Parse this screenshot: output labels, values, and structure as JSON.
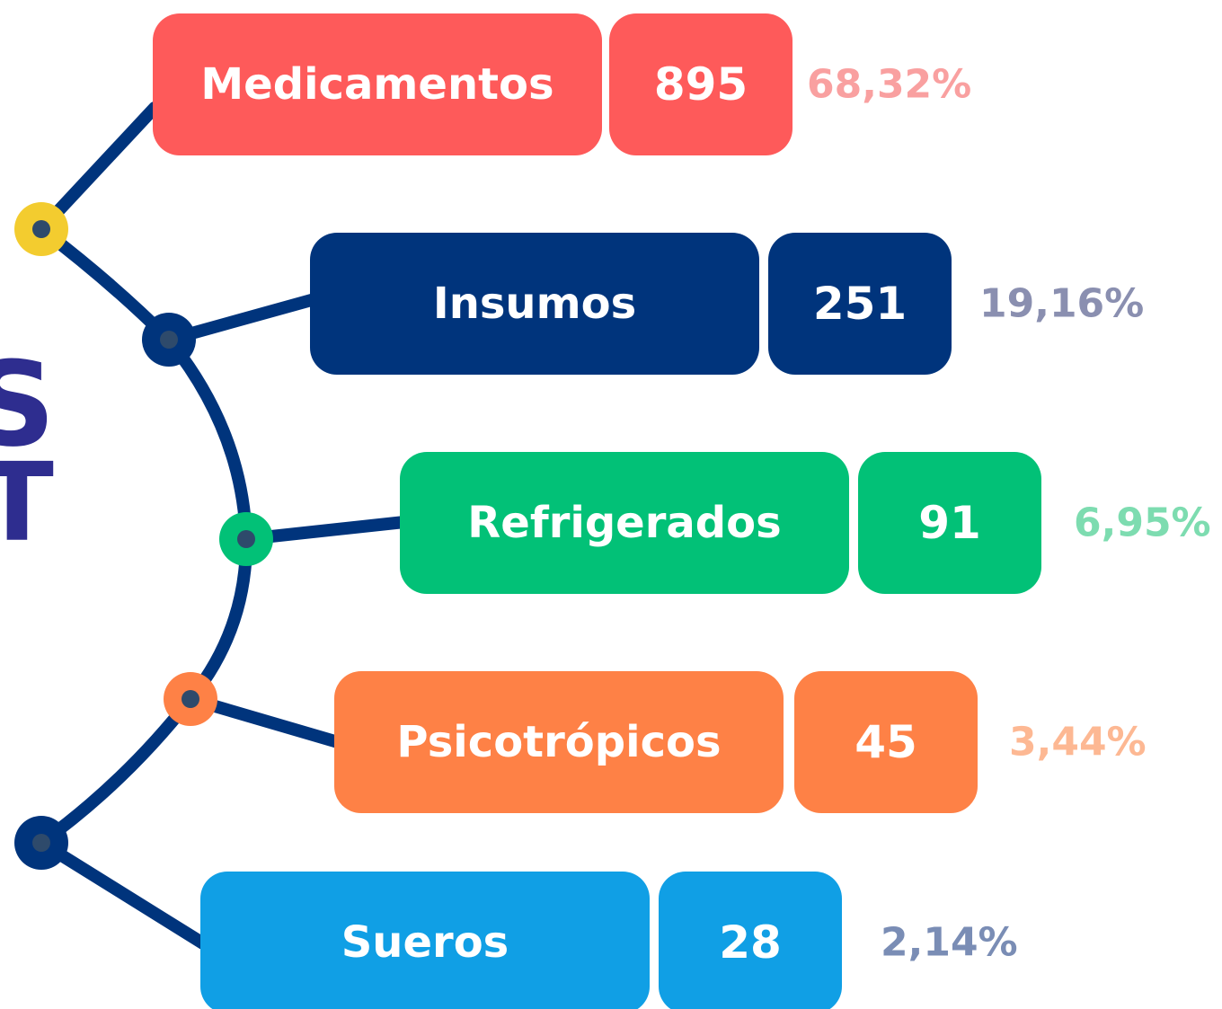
{
  "side_letters": [
    "S",
    "T"
  ],
  "items": [
    {
      "label": "Medicamentos",
      "count": 895,
      "percent": "68,32%"
    },
    {
      "label": "Insumos",
      "count": 251,
      "percent": "19,16%"
    },
    {
      "label": "Refrigerados",
      "count": 91,
      "percent": "6,95%"
    },
    {
      "label": "Psicotrópicos",
      "count": 45,
      "percent": "3,44%"
    },
    {
      "label": "Sueros",
      "count": 28,
      "percent": "2,14%"
    }
  ]
}
